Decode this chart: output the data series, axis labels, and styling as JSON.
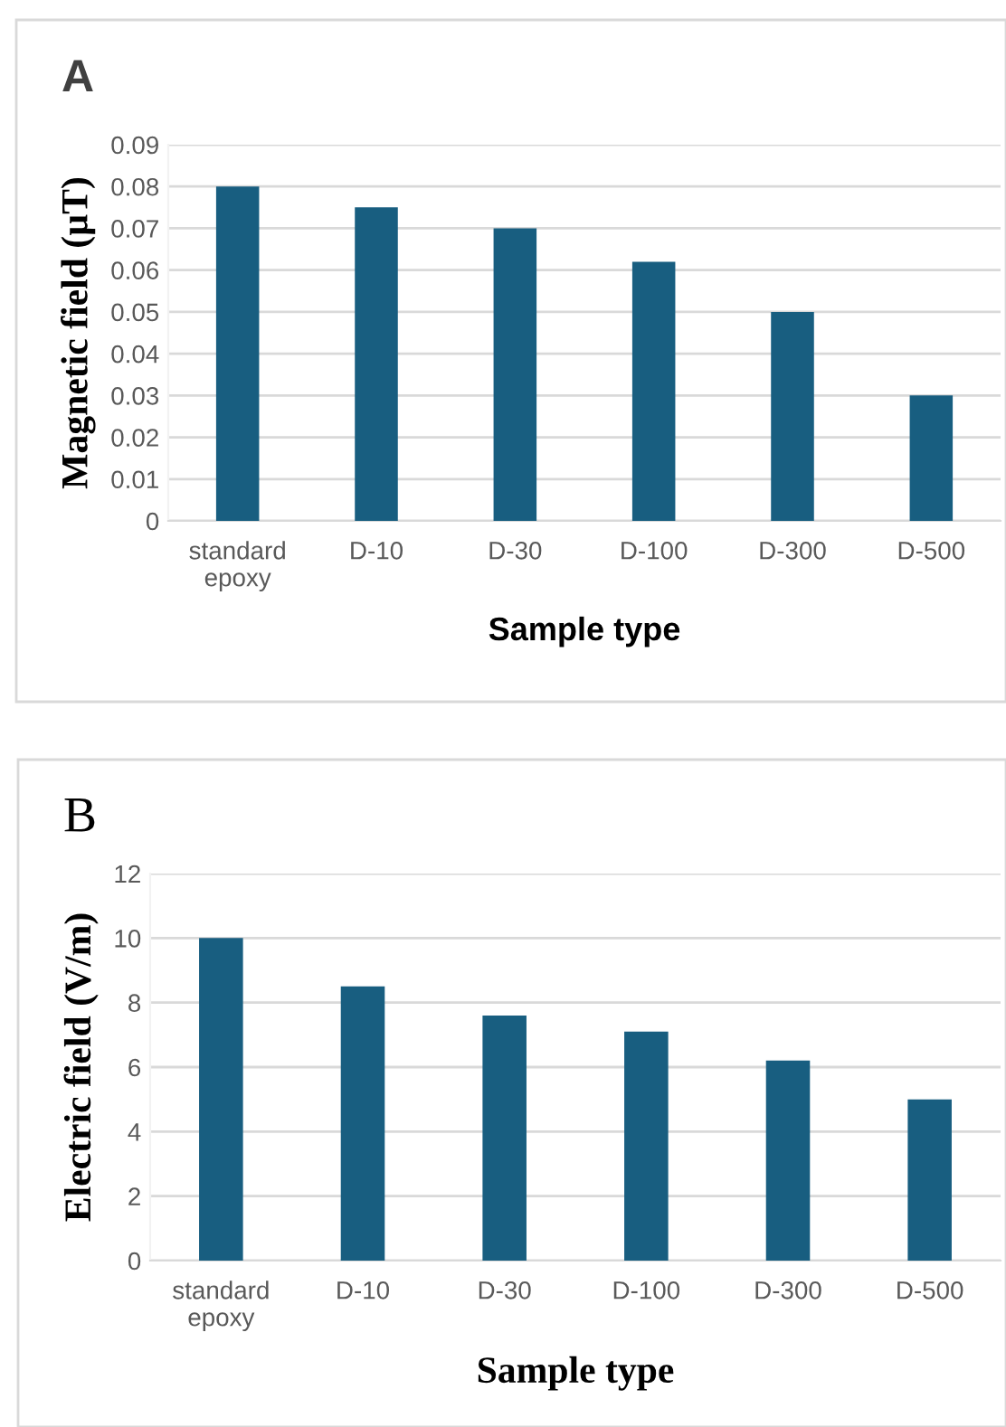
{
  "chart_data": [
    {
      "type": "bar",
      "title": "A",
      "xlabel": "Sample type",
      "ylabel": "Magnetic field (µT)",
      "categories": [
        "standard\nepoxy",
        "D-10",
        "D-30",
        "D-100",
        "D-300",
        "D-500"
      ],
      "values": [
        0.08,
        0.075,
        0.07,
        0.062,
        0.05,
        0.03
      ],
      "color": "#185e80",
      "ylim": [
        0,
        0.09
      ],
      "yticks": [
        {
          "value": 0,
          "label": "0"
        },
        0.01,
        0.02,
        0.03,
        0.04,
        0.05,
        0.06,
        0.07,
        0.08,
        0.09
      ],
      "grid": "y",
      "legend": false
    },
    {
      "type": "bar",
      "title": "B",
      "xlabel": "Sample type",
      "ylabel": "Electric field (V/m)",
      "categories": [
        "standard\nepoxy",
        "D-10",
        "D-30",
        "D-100",
        "D-300",
        "D-500"
      ],
      "values": [
        10,
        8.5,
        7.6,
        7.1,
        6.2,
        5.0
      ],
      "color": "#185e80",
      "ylim": [
        0,
        12
      ],
      "yticks": [
        0,
        2,
        4,
        6,
        8,
        10,
        12
      ],
      "grid": "y",
      "legend": false
    }
  ]
}
